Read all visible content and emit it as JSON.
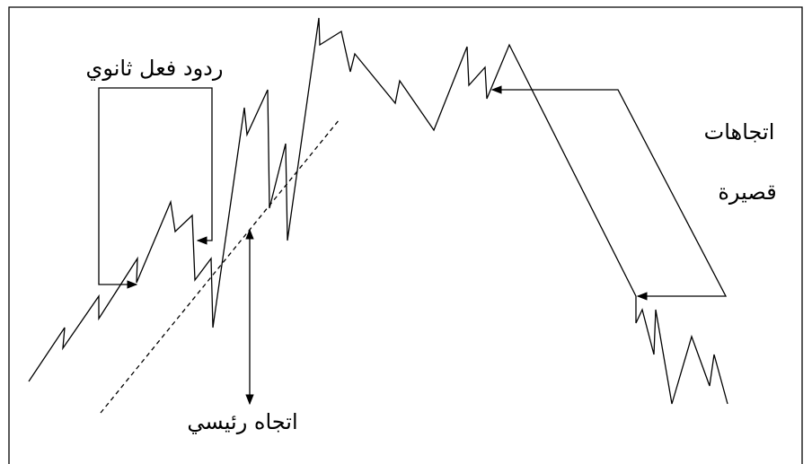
{
  "labels": {
    "secondary_reactions": "ردود فعل ثانوي",
    "short_trends": [
      "اتجاهات",
      "قصيرة"
    ],
    "main_trend": "اتجاه رئيسي"
  }
}
